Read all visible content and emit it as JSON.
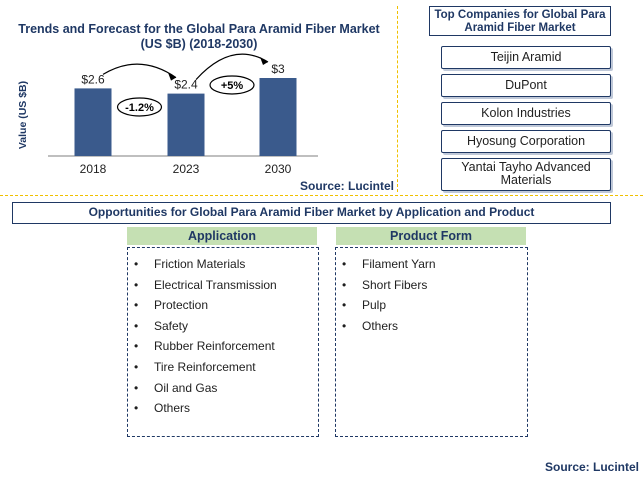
{
  "chart_data": {
    "type": "bar",
    "title": "Trends and Forecast for the Global Para Aramid Fiber Market (US $B) (2018-2030)",
    "categories": [
      "2018",
      "2023",
      "2030"
    ],
    "values": [
      2.6,
      2.4,
      3
    ],
    "data_labels": [
      "$2.6",
      "$2.4",
      "$3"
    ],
    "ylabel": "Value (US $B)",
    "xlabel": "",
    "bar_color": "#3a5a8c",
    "annotations": [
      {
        "text": "-1.2%",
        "from": "2018",
        "to": "2023"
      },
      {
        "text": "+5%",
        "from": "2023",
        "to": "2030"
      }
    ],
    "source": "Source: Lucintel"
  },
  "companies": {
    "header": "Top Companies for Global Para Aramid Fiber Market",
    "items": [
      "Teijin Aramid",
      "DuPont",
      "Kolon Industries",
      "Hyosung Corporation",
      "Yantai Tayho Advanced Materials"
    ]
  },
  "opportunities": {
    "title": "Opportunities for Global Para Aramid Fiber Market by Application and Product",
    "application": {
      "header": "Application",
      "items": [
        "Friction Materials",
        "Electrical  Transmission",
        "Protection",
        "Safety",
        "Rubber  Reinforcement",
        "Tire Reinforcement",
        "Oil and Gas",
        "Others"
      ]
    },
    "product_form": {
      "header": "Product Form",
      "items": [
        "Filament Yarn",
        "Short Fibers",
        "Pulp",
        "Others"
      ]
    }
  },
  "footer_source": "Source: Lucintel",
  "colors": {
    "accent_navy": "#1f3864",
    "divider_yellow": "#f0c000",
    "header_green": "#c5e0b3"
  }
}
